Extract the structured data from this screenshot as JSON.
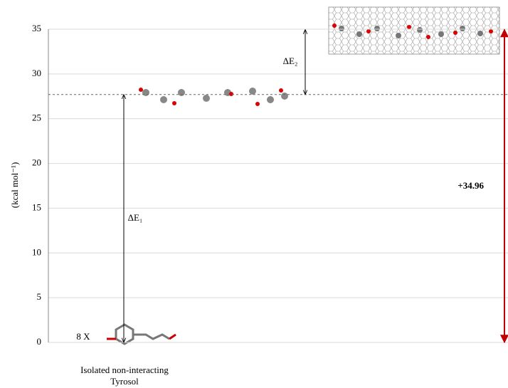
{
  "chart_data": {
    "type": "energy",
    "y_label": "(kcal mol⁻¹)",
    "ylim": [
      0,
      35
    ],
    "yticks": [
      0,
      5,
      10,
      15,
      20,
      25,
      30,
      35
    ],
    "grid": true,
    "levels": [
      0,
      27.7,
      34.96
    ],
    "step_labels": [
      "ΔE₁",
      "ΔE₂"
    ],
    "total": 34.96,
    "total_label": "+34.96",
    "total_color": "#c00000",
    "multiplier": "8 X",
    "baseline_label": [
      "Isolated non-interacting",
      "Tyrosol"
    ]
  }
}
